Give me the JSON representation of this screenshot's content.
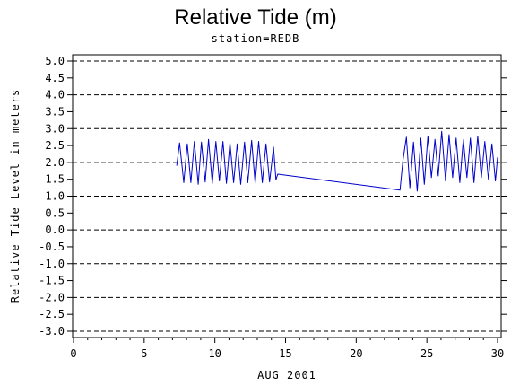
{
  "chart_data": {
    "type": "line",
    "title": "Relative Tide (m)",
    "subtitle": "station=REDB",
    "xlabel": "AUG 2001",
    "ylabel": "Relative Tide Level in meters",
    "xlim": [
      0,
      30
    ],
    "ylim": [
      -3.0,
      5.0
    ],
    "x_ticks": [
      0,
      5,
      10,
      15,
      20,
      25,
      30
    ],
    "y_ticks": [
      5.0,
      4.5,
      4.0,
      3.5,
      3.0,
      2.5,
      2.0,
      1.5,
      1.0,
      0.5,
      0.0,
      -0.5,
      -1.0,
      -1.5,
      -2.0,
      -2.5,
      -3.0
    ],
    "y_tick_labels": [
      "5.0",
      "4.5",
      "4.0",
      "3.5",
      "3.0",
      "2.5",
      "2.0",
      "1.5",
      "1.0",
      "0.5",
      "0.0",
      "-0.5",
      "-1.0",
      "-1.5",
      "-2.0",
      "-2.5",
      "-3.0"
    ],
    "grid": "horizontal dashed at whole meters",
    "line_color": "#0000cc",
    "series": [
      {
        "points": [
          [
            7.3,
            1.9
          ],
          [
            7.5,
            2.58
          ],
          [
            7.8,
            1.4
          ],
          [
            8.05,
            2.55
          ],
          [
            8.3,
            1.4
          ],
          [
            8.55,
            2.62
          ],
          [
            8.82,
            1.35
          ],
          [
            9.05,
            2.6
          ],
          [
            9.32,
            1.42
          ],
          [
            9.55,
            2.68
          ],
          [
            9.82,
            1.38
          ],
          [
            10.07,
            2.62
          ],
          [
            10.32,
            1.45
          ],
          [
            10.57,
            2.62
          ],
          [
            10.82,
            1.38
          ],
          [
            11.07,
            2.58
          ],
          [
            11.33,
            1.4
          ],
          [
            11.58,
            2.55
          ],
          [
            11.83,
            1.35
          ],
          [
            12.1,
            2.6
          ],
          [
            12.33,
            1.4
          ],
          [
            12.6,
            2.65
          ],
          [
            12.85,
            1.38
          ],
          [
            13.1,
            2.62
          ],
          [
            13.36,
            1.4
          ],
          [
            13.62,
            2.55
          ],
          [
            13.87,
            1.42
          ],
          [
            14.15,
            2.45
          ],
          [
            14.32,
            1.48
          ],
          [
            14.45,
            1.65
          ],
          [
            23.1,
            1.18
          ],
          [
            23.3,
            2.05
          ],
          [
            23.55,
            2.75
          ],
          [
            23.8,
            1.25
          ],
          [
            24.05,
            2.6
          ],
          [
            24.32,
            1.15
          ],
          [
            24.57,
            2.72
          ],
          [
            24.82,
            1.35
          ],
          [
            25.07,
            2.78
          ],
          [
            25.32,
            1.55
          ],
          [
            25.57,
            2.68
          ],
          [
            25.8,
            1.6
          ],
          [
            26.05,
            2.92
          ],
          [
            26.32,
            1.45
          ],
          [
            26.57,
            2.82
          ],
          [
            26.82,
            1.55
          ],
          [
            27.07,
            2.72
          ],
          [
            27.33,
            1.4
          ],
          [
            27.58,
            2.68
          ],
          [
            27.83,
            1.55
          ],
          [
            28.08,
            2.72
          ],
          [
            28.33,
            1.4
          ],
          [
            28.6,
            2.78
          ],
          [
            28.85,
            1.55
          ],
          [
            29.1,
            2.62
          ],
          [
            29.35,
            1.5
          ],
          [
            29.6,
            2.55
          ],
          [
            29.85,
            1.45
          ],
          [
            30.0,
            2.15
          ]
        ]
      }
    ]
  }
}
